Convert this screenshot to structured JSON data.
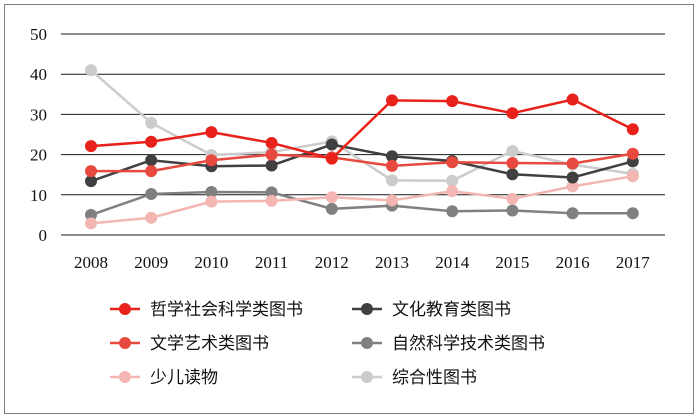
{
  "chart_data": {
    "type": "line",
    "title": "",
    "xlabel": "",
    "ylabel": "",
    "x": [
      "2008",
      "2009",
      "2010",
      "2011",
      "2012",
      "2013",
      "2014",
      "2015",
      "2016",
      "2017"
    ],
    "ylim": [
      0,
      50
    ],
    "yticks": [
      "0",
      "10",
      "20",
      "30",
      "40",
      "50"
    ],
    "grid": true,
    "legend_position": "bottom",
    "series": [
      {
        "name": "哲学社会科学类图书",
        "color": "#e8211b",
        "values": [
          22.1,
          23.2,
          25.6,
          22.9,
          19.0,
          33.5,
          33.3,
          30.3,
          33.7,
          26.3
        ]
      },
      {
        "name": "文化教育类图书",
        "color": "#404040",
        "values": [
          13.4,
          18.6,
          17.1,
          17.3,
          22.5,
          19.6,
          18.4,
          15.1,
          14.3,
          18.3
        ]
      },
      {
        "name": "文学艺术类图书",
        "color": "#e8493e",
        "values": [
          15.9,
          15.9,
          18.6,
          20.0,
          19.3,
          17.2,
          18.1,
          17.9,
          17.8,
          20.2
        ]
      },
      {
        "name": "自然科学技术类图书",
        "color": "#808080",
        "values": [
          5.0,
          10.2,
          10.7,
          10.6,
          6.5,
          7.3,
          5.9,
          6.1,
          5.4,
          5.4
        ]
      },
      {
        "name": "少儿读物",
        "color": "#f4b6b2",
        "values": [
          2.9,
          4.3,
          8.3,
          8.5,
          9.4,
          8.6,
          10.9,
          9.0,
          12.1,
          14.6
        ]
      },
      {
        "name": "综合性图书",
        "color": "#cccccc",
        "values": [
          41.0,
          27.9,
          19.9,
          20.6,
          23.3,
          13.6,
          13.5,
          20.9,
          17.5,
          15.2
        ]
      }
    ]
  }
}
